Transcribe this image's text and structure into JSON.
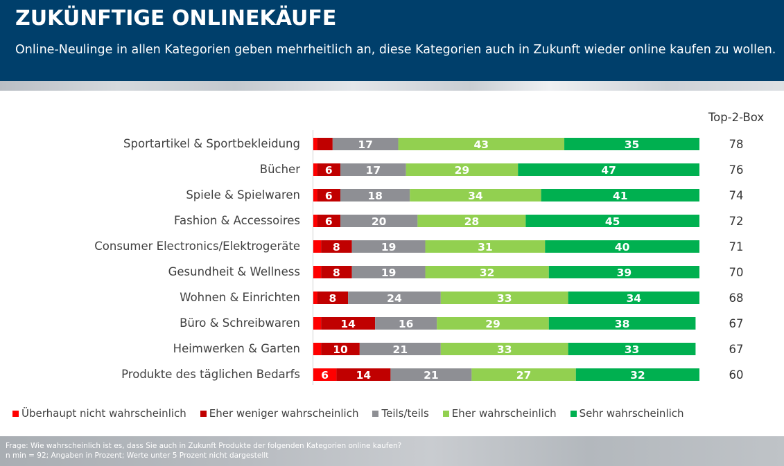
{
  "header": {
    "title": "ZUKÜNFTIGE ONLINEKÄUFE",
    "subtitle": "Online-Neulinge in allen Kategorien geben mehrheitlich an, diese Kategorien auch in Zukunft wieder online kaufen zu wollen."
  },
  "colors": {
    "header_bg": "#003f6b",
    "ueberhaupt_nicht": "#ff0000",
    "eher_weniger": "#c00000",
    "teils": "#8e8f94",
    "eher": "#92d050",
    "sehr": "#00b050"
  },
  "chart_data": {
    "type": "bar",
    "orientation": "horizontal",
    "stacked": true,
    "title": "ZUKÜNFTIGE ONLINEKÄUFE",
    "xlabel": "",
    "ylabel": "",
    "xlim": [
      0,
      100
    ],
    "unit": "Prozent",
    "grid": false,
    "legend_position": "bottom",
    "top2box_header": "Top-2-Box",
    "categories": [
      "Sportartikel & Sportbekleidung",
      "Bücher",
      "Spiele & Spielwaren",
      "Fashion & Accessoires",
      "Consumer Electronics/Elektrogeräte",
      "Gesundheit & Wellness",
      "Wohnen & Einrichten",
      "Büro & Schreibwaren",
      "Heimwerken & Garten",
      "Produkte des täglichen Bedarfs"
    ],
    "series": [
      {
        "name": "Überhaupt nicht wahrscheinlich",
        "color": "#ff0000",
        "values": [
          1,
          1,
          1,
          1,
          2,
          2,
          1,
          2,
          2,
          6
        ]
      },
      {
        "name": "Eher weniger wahrscheinlich",
        "color": "#c00000",
        "values": [
          4,
          6,
          6,
          6,
          8,
          8,
          8,
          14,
          10,
          14
        ]
      },
      {
        "name": "Teils/teils",
        "color": "#8e8f94",
        "values": [
          17,
          17,
          18,
          20,
          19,
          19,
          24,
          16,
          21,
          21
        ]
      },
      {
        "name": "Eher wahrscheinlich",
        "color": "#92d050",
        "values": [
          43,
          29,
          34,
          28,
          31,
          32,
          33,
          29,
          33,
          27
        ]
      },
      {
        "name": "Sehr wahrscheinlich",
        "color": "#00b050",
        "values": [
          35,
          47,
          41,
          45,
          40,
          39,
          34,
          38,
          33,
          32
        ]
      }
    ],
    "top2box": [
      78,
      76,
      74,
      72,
      71,
      70,
      68,
      67,
      67,
      60
    ],
    "label_threshold": 5,
    "note": "Werte unter 5 Prozent nicht dargestellt"
  },
  "legend": [
    {
      "label": "Überhaupt nicht wahrscheinlich",
      "color": "#ff0000"
    },
    {
      "label": "Eher weniger wahrscheinlich",
      "color": "#c00000"
    },
    {
      "label": "Teils/teils",
      "color": "#8e8f94"
    },
    {
      "label": "Eher wahrscheinlich",
      "color": "#92d050"
    },
    {
      "label": "Sehr wahrscheinlich",
      "color": "#00b050"
    }
  ],
  "footer": {
    "question": "Frage: Wie wahrscheinlich ist es, dass Sie auch in Zukunft Produkte der folgenden Kategorien online kaufen?",
    "note": "n min = 92; Angaben in Prozent; Werte unter 5 Prozent nicht dargestellt"
  }
}
